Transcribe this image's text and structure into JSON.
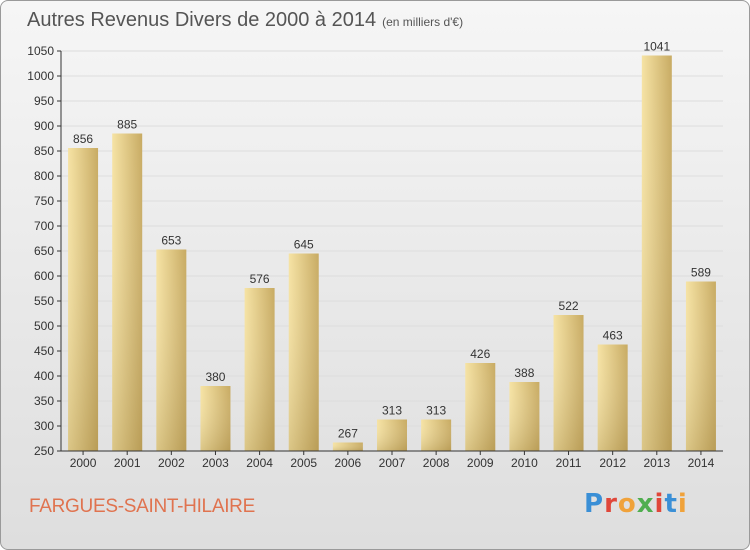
{
  "header": {
    "title": "Autres Revenus Divers de 2000 à 2014",
    "unit": "(en milliers d'€)"
  },
  "footer": {
    "place": "FARGUES-SAINT-HILAIRE",
    "logo_text": "Proxiti",
    "logo_colors": [
      "#3a8fd6",
      "#e0473a",
      "#f0a23a",
      "#4fae4f",
      "#e0473a",
      "#3a8fd6",
      "#f0a23a"
    ]
  },
  "colors": {
    "bar_light": "#f6e3a4",
    "bar_dark": "#c8ab63",
    "grid": "#dddddd",
    "axis": "#333333",
    "text": "#333333"
  },
  "chart_data": {
    "type": "bar",
    "title": "Autres Revenus Divers de 2000 à 2014",
    "xlabel": "",
    "ylabel": "",
    "categories": [
      "2000",
      "2001",
      "2002",
      "2003",
      "2004",
      "2005",
      "2006",
      "2007",
      "2008",
      "2009",
      "2010",
      "2011",
      "2012",
      "2013",
      "2014"
    ],
    "values": [
      856,
      885,
      653,
      380,
      576,
      645,
      267,
      313,
      313,
      426,
      388,
      522,
      463,
      1041,
      589
    ],
    "ylim": [
      250,
      1050
    ],
    "yticks": [
      250,
      300,
      350,
      400,
      450,
      500,
      550,
      600,
      650,
      700,
      750,
      800,
      850,
      900,
      950,
      1000,
      1050
    ],
    "grid": true,
    "data_labels": true
  }
}
